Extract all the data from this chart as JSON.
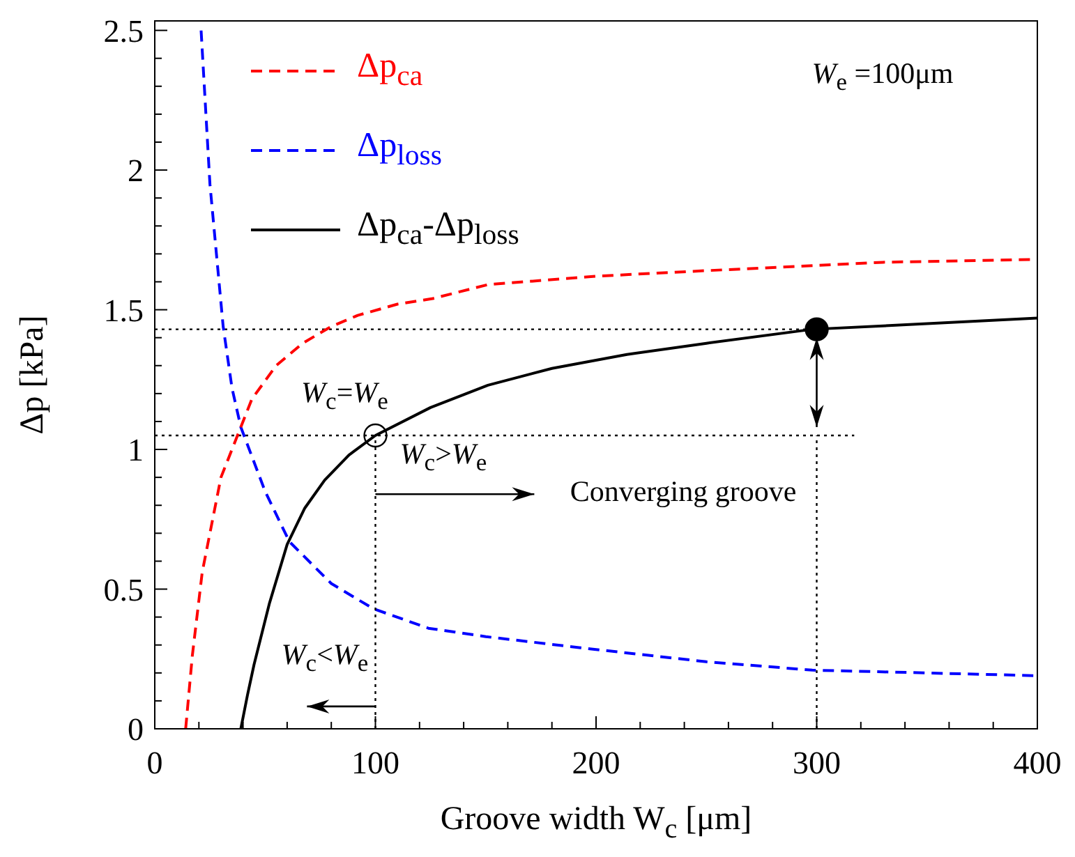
{
  "chart_data": {
    "type": "line",
    "xlabel": "Groove width W$_{c}$ [μm]",
    "ylabel": "Δp [kPa]",
    "xlim": [
      0,
      400
    ],
    "ylim": [
      0,
      2.5
    ],
    "xticks": [
      0,
      {
        "value": 20,
        "label": null
      },
      {
        "value": 40,
        "label": null
      },
      {
        "value": 60,
        "label": null
      },
      {
        "value": 80,
        "label": null
      },
      100,
      {
        "value": 120,
        "label": null
      },
      {
        "value": 140,
        "label": null
      },
      {
        "value": 160,
        "label": null
      },
      {
        "value": 180,
        "label": null
      },
      200,
      {
        "value": 220,
        "label": null
      },
      {
        "value": 240,
        "label": null
      },
      {
        "value": 260,
        "label": null
      },
      {
        "value": 280,
        "label": null
      },
      300,
      {
        "value": 320,
        "label": null
      },
      {
        "value": 340,
        "label": null
      },
      {
        "value": 360,
        "label": null
      },
      {
        "value": 380,
        "label": null
      },
      400
    ],
    "yticks": [
      0,
      {
        "value": 0.1,
        "label": null
      },
      {
        "value": 0.2,
        "label": null
      },
      {
        "value": 0.3,
        "label": null
      },
      {
        "value": 0.4,
        "label": null
      },
      0.5,
      {
        "value": 0.6,
        "label": null
      },
      {
        "value": 0.7,
        "label": null
      },
      {
        "value": 0.8,
        "label": null
      },
      {
        "value": 0.9,
        "label": null
      },
      1,
      {
        "value": 1.1,
        "label": null
      },
      {
        "value": 1.2,
        "label": null
      },
      {
        "value": 1.3,
        "label": null
      },
      {
        "value": 1.4,
        "label": null
      },
      1.5,
      {
        "value": 1.6,
        "label": null
      },
      {
        "value": 1.7,
        "label": null
      },
      {
        "value": 1.8,
        "label": null
      },
      {
        "value": 1.9,
        "label": null
      },
      2,
      {
        "value": 2.1,
        "label": null
      },
      {
        "value": 2.2,
        "label": null
      },
      {
        "value": 2.3,
        "label": null
      },
      {
        "value": 2.4,
        "label": null
      },
      2.5
    ],
    "grid": false,
    "legend": "top left",
    "marker": "none",
    "series": [
      {
        "name": "Δp$_{ca}$",
        "color": "#ff0000",
        "line_style": "dashed",
        "x": [
          14,
          17,
          21.5,
          30,
          39,
          44,
          55,
          67,
          80,
          92,
          110,
          126,
          151,
          200,
          250,
          277,
          330,
          400
        ],
        "values": [
          0,
          0.26,
          0.56,
          0.9,
          1.08,
          1.18,
          1.3,
          1.38,
          1.44,
          1.48,
          1.52,
          1.54,
          1.59,
          1.62,
          1.64,
          1.65,
          1.67,
          1.68
        ]
      },
      {
        "name": "Δp$_{loss}$",
        "color": "#0000ff",
        "line_style": "dashed",
        "x": [
          21,
          25,
          31,
          35,
          39,
          50,
          61,
          80,
          99,
          124,
          150,
          193,
          250,
          298,
          350,
          400
        ],
        "values": [
          2.5,
          1.95,
          1.44,
          1.22,
          1.08,
          0.85,
          0.67,
          0.52,
          0.43,
          0.36,
          0.33,
          0.29,
          0.24,
          0.21,
          0.2,
          0.19
        ]
      },
      {
        "name": "Δp$_{ca}$-Δp$_{loss}$",
        "color": "#000000",
        "line_style": "solid",
        "x": [
          39,
          42,
          45,
          52,
          60,
          68,
          77,
          88,
          100,
          125,
          151,
          180,
          214,
          250,
          298,
          350,
          400
        ],
        "values": [
          0,
          0.12,
          0.23,
          0.45,
          0.66,
          0.79,
          0.89,
          0.98,
          1.05,
          1.15,
          1.23,
          1.29,
          1.34,
          1.38,
          1.43,
          1.45,
          1.47
        ]
      },
      {
        "color": "#000000",
        "line_style": "dotted",
        "x": [
          0,
          300
        ],
        "values": [
          1.43,
          1.43
        ]
      },
      {
        "color": "#000000",
        "line_style": "dotted",
        "x": [
          0,
          317
        ],
        "values": [
          1.05,
          1.05
        ]
      },
      {
        "type": "scatter",
        "marker": "circle",
        "color": "#000000",
        "colors": [
          "#ffffff"
        ],
        "x": [
          100
        ],
        "values": [
          1.05
        ]
      },
      {
        "type": "scatter",
        "marker": "circle",
        "color": "#000000",
        "x": [
          300
        ],
        "values": [
          1.43
        ]
      }
    ],
    "annotations": [
      {
        "text": "W$_{c}$=W$_{e}$",
        "x": 100,
        "y": 1.05
      },
      "W$_{c}$>W$_{e}$",
      "Converging groove",
      "W$_{c}$<W$_{e}$",
      "W$_{e}$ =100μm"
    ],
    "ref_lines": [
      {
        "axis": "x",
        "value": 100,
        "color": "#000000",
        "line_style": "dotted"
      },
      {
        "axis": "x",
        "value": 300,
        "color": "#000000",
        "line_style": "dotted"
      }
    ]
  }
}
